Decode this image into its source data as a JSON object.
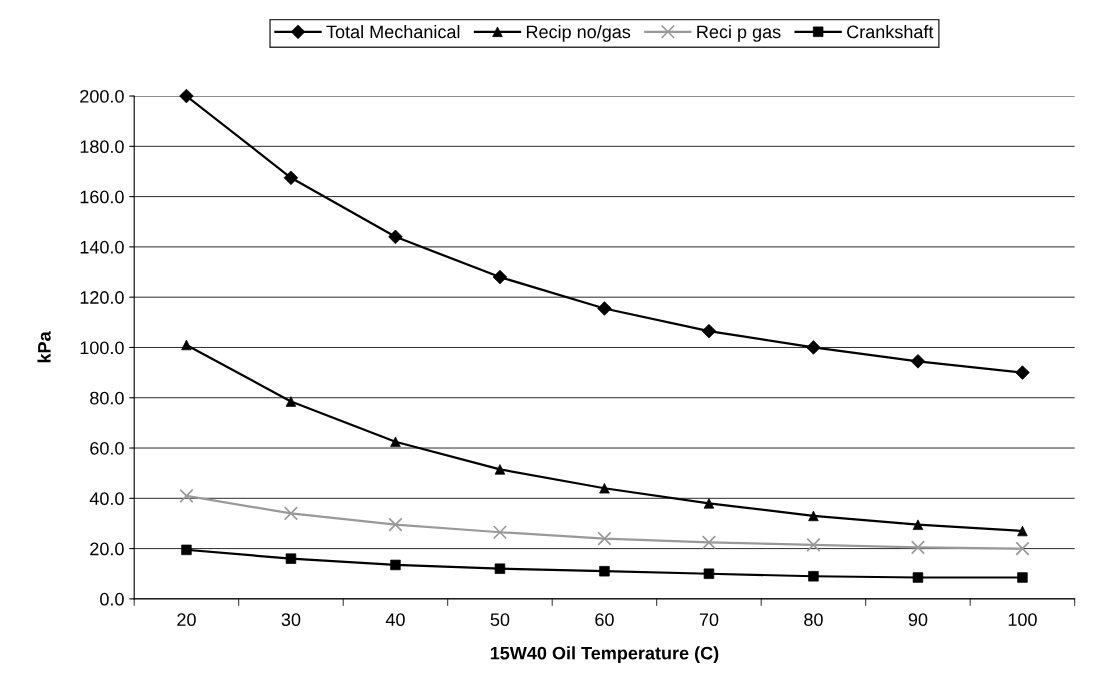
{
  "chart_data": {
    "type": "line",
    "xlabel": "15W40 Oil Temperature (C)",
    "ylabel": "kPa",
    "categories": [
      "20",
      "30",
      "40",
      "50",
      "60",
      "70",
      "80",
      "90",
      "100"
    ],
    "series": [
      {
        "name": "Total Mechanical",
        "color": "#000000",
        "marker": "diamond",
        "values": [
          200,
          167.5,
          144,
          128,
          115.5,
          106.5,
          100,
          94.5,
          90
        ]
      },
      {
        "name": "Recip no/gas",
        "color": "#000000",
        "marker": "triangle",
        "values": [
          101,
          78.5,
          62.5,
          51.5,
          44,
          38,
          33,
          29.5,
          27
        ]
      },
      {
        "name": "Reci p gas",
        "color": "#999999",
        "marker": "cross",
        "values": [
          41,
          34,
          29.5,
          26.5,
          24,
          22.5,
          21.5,
          20.5,
          20
        ]
      },
      {
        "name": "Crankshaft",
        "color": "#000000",
        "marker": "square",
        "values": [
          19.5,
          16,
          13.5,
          12,
          11,
          10,
          9,
          8.5,
          8.5
        ]
      }
    ],
    "ylim": [
      0,
      200
    ],
    "yticks": [
      {
        "value": 0,
        "label": "0.0"
      },
      {
        "value": 20,
        "label": "20.0"
      },
      {
        "value": 40,
        "label": "40.0"
      },
      {
        "value": 60,
        "label": "60.0"
      },
      {
        "value": 80,
        "label": "80.0"
      },
      {
        "value": 100,
        "label": "100.0"
      },
      {
        "value": 120,
        "label": "120.0"
      },
      {
        "value": 140,
        "label": "140.0"
      },
      {
        "value": 160,
        "label": "160.0"
      },
      {
        "value": 180,
        "label": "180.0"
      },
      {
        "value": 200,
        "label": "200.0"
      }
    ],
    "grid": "y",
    "legend": "top",
    "line_style": "solid"
  }
}
